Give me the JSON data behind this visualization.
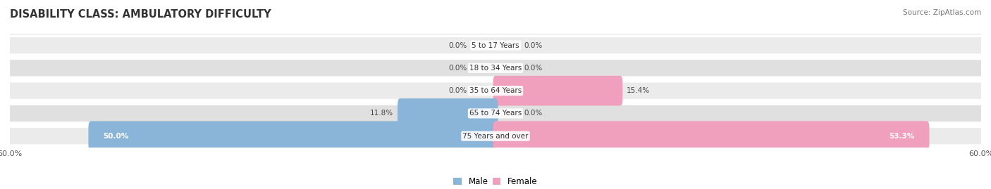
{
  "title": "DISABILITY CLASS: AMBULATORY DIFFICULTY",
  "source": "Source: ZipAtlas.com",
  "categories": [
    "5 to 17 Years",
    "18 to 34 Years",
    "35 to 64 Years",
    "65 to 74 Years",
    "75 Years and over"
  ],
  "male_values": [
    0.0,
    0.0,
    0.0,
    11.8,
    50.0
  ],
  "female_values": [
    0.0,
    0.0,
    15.4,
    0.0,
    53.3
  ],
  "x_max": 60.0,
  "male_color": "#8ab4d8",
  "female_color": "#f0a0bc",
  "row_bg_light": "#ebebeb",
  "row_bg_dark": "#e0e0e0",
  "label_color": "#444444",
  "title_fontsize": 10.5,
  "source_fontsize": 7.5,
  "bar_label_fontsize": 7.5,
  "cat_label_fontsize": 7.5,
  "legend_fontsize": 8.5,
  "figsize": [
    14.06,
    2.69
  ],
  "dpi": 100
}
